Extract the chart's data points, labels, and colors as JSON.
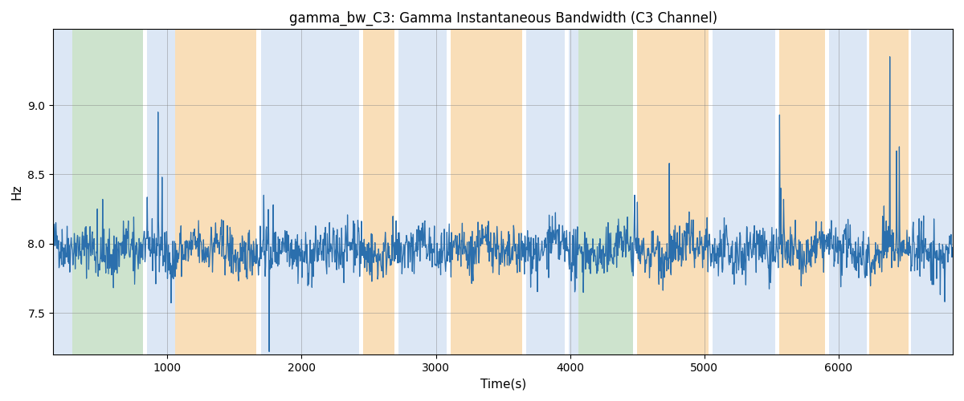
{
  "title": "gamma_bw_C3: Gamma Instantaneous Bandwidth (C3 Channel)",
  "xlabel": "Time(s)",
  "ylabel": "Hz",
  "xlim": [
    150,
    6850
  ],
  "ylim": [
    7.2,
    9.55
  ],
  "yticks": [
    7.5,
    8.0,
    8.5,
    9.0
  ],
  "xticks": [
    1000,
    2000,
    3000,
    4000,
    5000,
    6000
  ],
  "line_color": "#2b6fad",
  "line_width": 0.9,
  "background_bands": [
    {
      "xmin": 150,
      "xmax": 290,
      "color": "#c5d8ef",
      "alpha": 0.6
    },
    {
      "xmin": 290,
      "xmax": 820,
      "color": "#9dc89d",
      "alpha": 0.5
    },
    {
      "xmin": 850,
      "xmax": 1060,
      "color": "#c5d8ef",
      "alpha": 0.6
    },
    {
      "xmin": 1060,
      "xmax": 1660,
      "color": "#f5c98a",
      "alpha": 0.6
    },
    {
      "xmin": 1700,
      "xmax": 2430,
      "color": "#c5d8ef",
      "alpha": 0.6
    },
    {
      "xmin": 2460,
      "xmax": 2690,
      "color": "#f5c98a",
      "alpha": 0.6
    },
    {
      "xmin": 2720,
      "xmax": 3080,
      "color": "#c5d8ef",
      "alpha": 0.6
    },
    {
      "xmin": 3110,
      "xmax": 3640,
      "color": "#f5c98a",
      "alpha": 0.6
    },
    {
      "xmin": 3670,
      "xmax": 3960,
      "color": "#c5d8ef",
      "alpha": 0.6
    },
    {
      "xmin": 3990,
      "xmax": 4060,
      "color": "#c5d8ef",
      "alpha": 0.6
    },
    {
      "xmin": 4060,
      "xmax": 4470,
      "color": "#9dc89d",
      "alpha": 0.5
    },
    {
      "xmin": 4500,
      "xmax": 5030,
      "color": "#f5c98a",
      "alpha": 0.6
    },
    {
      "xmin": 5060,
      "xmax": 5530,
      "color": "#c5d8ef",
      "alpha": 0.6
    },
    {
      "xmin": 5560,
      "xmax": 5900,
      "color": "#f5c98a",
      "alpha": 0.6
    },
    {
      "xmin": 5930,
      "xmax": 6210,
      "color": "#c5d8ef",
      "alpha": 0.6
    },
    {
      "xmin": 6230,
      "xmax": 6520,
      "color": "#f5c98a",
      "alpha": 0.6
    },
    {
      "xmin": 6540,
      "xmax": 6850,
      "color": "#c5d8ef",
      "alpha": 0.6
    }
  ],
  "seed": 42,
  "n_points": 2000,
  "base_value": 7.95,
  "noise_scale": 0.09
}
